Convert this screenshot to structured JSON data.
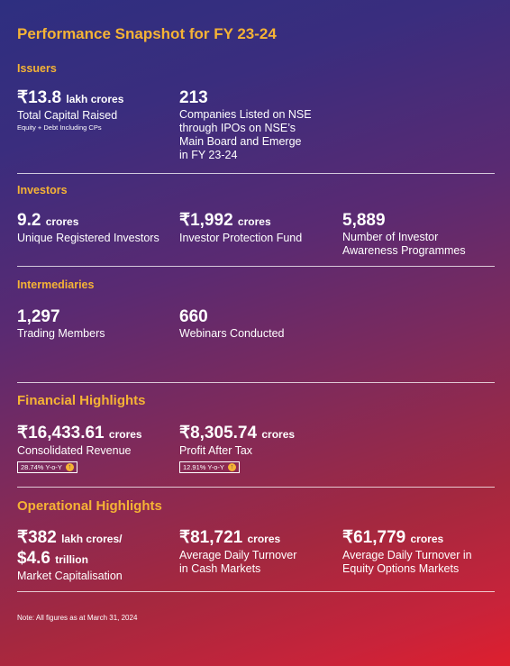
{
  "title": "Performance Snapshot for FY 23-24",
  "issuers": {
    "heading": "Issuers",
    "capital": {
      "value": "₹13.8",
      "unit": "lakh crores",
      "label": "Total Capital Raised",
      "sublabel": "Equity + Debt Including CPs"
    },
    "companies": {
      "value": "213",
      "lines": [
        "Companies Listed on NSE",
        "through IPOs on NSE’s",
        "Main Board and Emerge",
        "in FY 23-24"
      ]
    }
  },
  "investors": {
    "heading": "Investors",
    "registered": {
      "value": "9.2",
      "unit": "crores",
      "label": "Unique Registered Investors"
    },
    "protection": {
      "value": "₹1,992",
      "unit": "crores",
      "label": "Investor Protection Fund"
    },
    "awareness": {
      "value": "5,889",
      "lines": [
        "Number of Investor",
        "Awareness Programmes"
      ]
    }
  },
  "intermediaries": {
    "heading": "Intermediaries",
    "members": {
      "value": "1,297",
      "label": "Trading Members"
    },
    "webinars": {
      "value": "660",
      "label": "Webinars Conducted"
    }
  },
  "financial": {
    "heading": "Financial Highlights",
    "revenue": {
      "value": "₹16,433.61",
      "unit": "crores",
      "label": "Consolidated Revenue",
      "badge": "28.74% Y-o-Y",
      "growth_icon": "up-arrow-icon"
    },
    "profit": {
      "value": "₹8,305.74",
      "unit": "crores",
      "label": "Profit After Tax",
      "badge": "12.91% Y-o-Y",
      "growth_icon": "up-arrow-icon"
    }
  },
  "operational": {
    "heading": "Operational Highlights",
    "market_cap": {
      "value1": "₹382",
      "unit1": "lakh crores/",
      "value2": "$4.6",
      "unit2": "trillion",
      "label": "Market Capitalisation"
    },
    "cash": {
      "value": "₹81,721",
      "unit": "crores",
      "lines": [
        "Average Daily Turnover",
        "in Cash Markets"
      ]
    },
    "options": {
      "value": "₹61,779",
      "unit": "crores",
      "lines": [
        "Average Daily Turnover in",
        "Equity Options Markets"
      ]
    }
  },
  "note": "Note: All figures as at March 31, 2024",
  "colors": {
    "accent": "#f5b335",
    "gradient_start": "#2e2f80",
    "gradient_end": "#de1f2e"
  }
}
